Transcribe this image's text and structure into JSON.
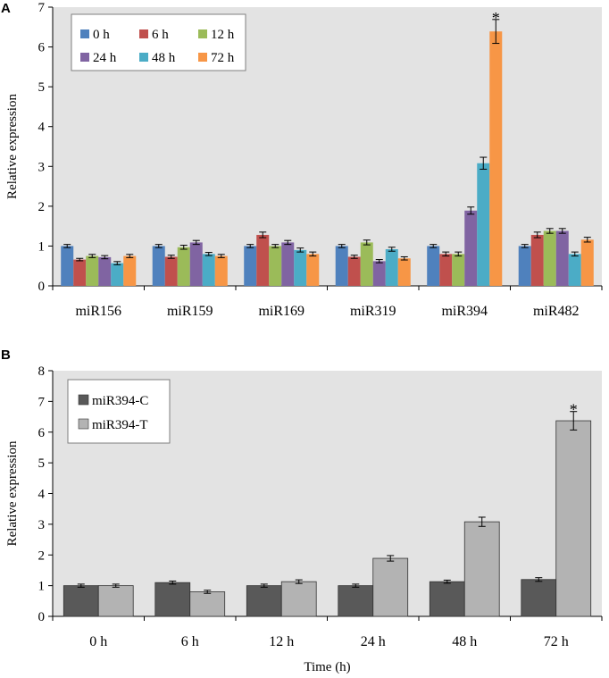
{
  "chart_data": [
    {
      "panel": "A",
      "type": "bar",
      "title": "",
      "xlabel": "",
      "ylabel": "Relative expression",
      "ylim": [
        0,
        7
      ],
      "yticks": [
        "0",
        "1",
        "2",
        "3",
        "4",
        "5",
        "6",
        "7"
      ],
      "categories": [
        "miR156",
        "miR159",
        "miR169",
        "miR319",
        "miR394",
        "miR482"
      ],
      "series": [
        {
          "name": "0 h",
          "color": "#4f81bd",
          "values": [
            1.0,
            1.0,
            1.0,
            1.0,
            1.0,
            1.0
          ],
          "errors": [
            0.04,
            0.04,
            0.04,
            0.04,
            0.04,
            0.04
          ]
        },
        {
          "name": "6 h",
          "color": "#c0504d",
          "values": [
            0.66,
            0.73,
            1.28,
            0.73,
            0.8,
            1.28
          ],
          "errors": [
            0.03,
            0.04,
            0.07,
            0.04,
            0.05,
            0.07
          ]
        },
        {
          "name": "12 h",
          "color": "#9bbb59",
          "values": [
            0.75,
            0.97,
            1.0,
            1.09,
            0.8,
            1.38
          ],
          "errors": [
            0.04,
            0.05,
            0.04,
            0.06,
            0.05,
            0.06
          ]
        },
        {
          "name": "24 h",
          "color": "#8064a2",
          "values": [
            0.72,
            1.09,
            1.09,
            0.62,
            1.89,
            1.38
          ],
          "errors": [
            0.04,
            0.05,
            0.05,
            0.04,
            0.09,
            0.06
          ]
        },
        {
          "name": "48 h",
          "color": "#4bacc6",
          "values": [
            0.57,
            0.8,
            0.9,
            0.92,
            3.08,
            0.8
          ],
          "errors": [
            0.04,
            0.04,
            0.05,
            0.05,
            0.15,
            0.05
          ]
        },
        {
          "name": "72 h",
          "color": "#f79646",
          "values": [
            0.75,
            0.75,
            0.8,
            0.69,
            6.39,
            1.16
          ],
          "errors": [
            0.04,
            0.04,
            0.05,
            0.04,
            0.3,
            0.06
          ]
        }
      ],
      "annotations": [
        {
          "text": "*",
          "category": "miR394",
          "series": "72 h"
        }
      ],
      "legend": "top-left, 3 columns"
    },
    {
      "panel": "B",
      "type": "bar",
      "title": "",
      "xlabel": "Time (h)",
      "ylabel": "Relative expression",
      "ylim": [
        0,
        8
      ],
      "yticks": [
        "0",
        "1",
        "2",
        "3",
        "4",
        "5",
        "6",
        "7",
        "8"
      ],
      "categories": [
        "0 h",
        "6 h",
        "12 h",
        "24 h",
        "48 h",
        "72 h"
      ],
      "series": [
        {
          "name": "miR394-C",
          "color": "#595959",
          "values": [
            1.0,
            1.1,
            1.0,
            1.0,
            1.13,
            1.2
          ],
          "errors": [
            0.05,
            0.05,
            0.05,
            0.05,
            0.05,
            0.06
          ]
        },
        {
          "name": "miR394-T",
          "color": "#b3b3b3",
          "values": [
            1.0,
            0.8,
            1.13,
            1.89,
            3.08,
            6.37
          ],
          "errors": [
            0.05,
            0.05,
            0.06,
            0.09,
            0.15,
            0.3
          ]
        }
      ],
      "annotations": [
        {
          "text": "*",
          "category": "72 h",
          "series": "miR394-T"
        }
      ],
      "legend": "top-left, 1 column"
    }
  ]
}
